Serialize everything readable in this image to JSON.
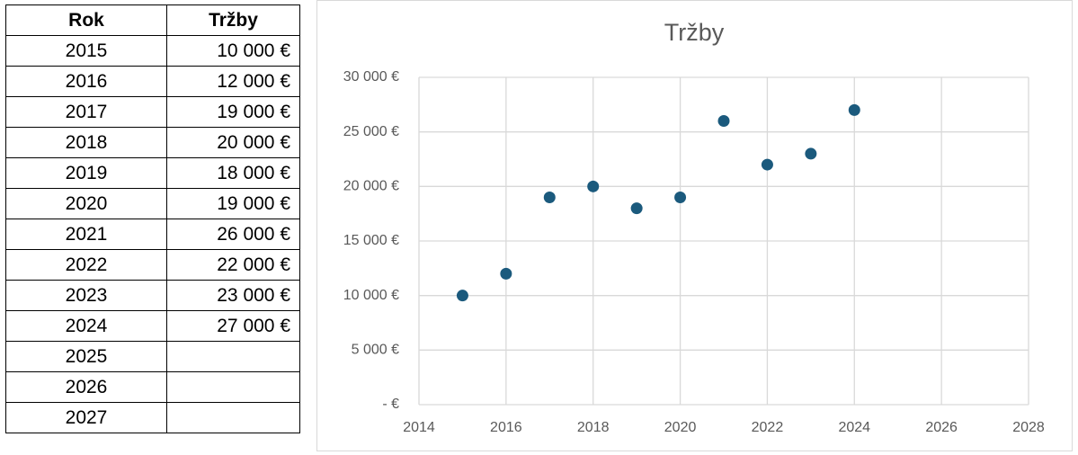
{
  "table": {
    "header": [
      "Rok",
      "Tržby"
    ],
    "rows": [
      [
        "2015",
        "10 000 €"
      ],
      [
        "2016",
        "12 000 €"
      ],
      [
        "2017",
        "19 000 €"
      ],
      [
        "2018",
        "20 000 €"
      ],
      [
        "2019",
        "18 000 €"
      ],
      [
        "2020",
        "19 000 €"
      ],
      [
        "2021",
        "26 000 €"
      ],
      [
        "2022",
        "22 000 €"
      ],
      [
        "2023",
        "23 000 €"
      ],
      [
        "2024",
        "27 000 €"
      ],
      [
        "2025"
      ],
      [
        "2026"
      ],
      [
        "2027"
      ]
    ]
  },
  "chart_data": {
    "type": "scatter",
    "title": "Tržby",
    "x": [
      2015,
      2016,
      2017,
      2018,
      2019,
      2020,
      2021,
      2022,
      2023,
      2024
    ],
    "values": [
      10000,
      12000,
      19000,
      20000,
      18000,
      19000,
      26000,
      22000,
      23000,
      27000
    ],
    "color": "#1b5a7d",
    "xlim": [
      2014,
      2028
    ],
    "xticks": [
      2014,
      2016,
      2018,
      2020,
      2022,
      2024,
      2026,
      2028
    ],
    "ylim": [
      0,
      30000
    ],
    "yticks": [
      {
        "value": 0,
        "label": "-  €"
      },
      {
        "value": 5000,
        "label": "5 000 €"
      },
      {
        "value": 10000,
        "label": "10 000 €"
      },
      {
        "value": 15000,
        "label": "15 000 €"
      },
      {
        "value": 20000,
        "label": "20 000 €"
      },
      {
        "value": 25000,
        "label": "25 000 €"
      },
      {
        "value": 30000,
        "label": "30 000 €"
      }
    ],
    "grid": true
  }
}
